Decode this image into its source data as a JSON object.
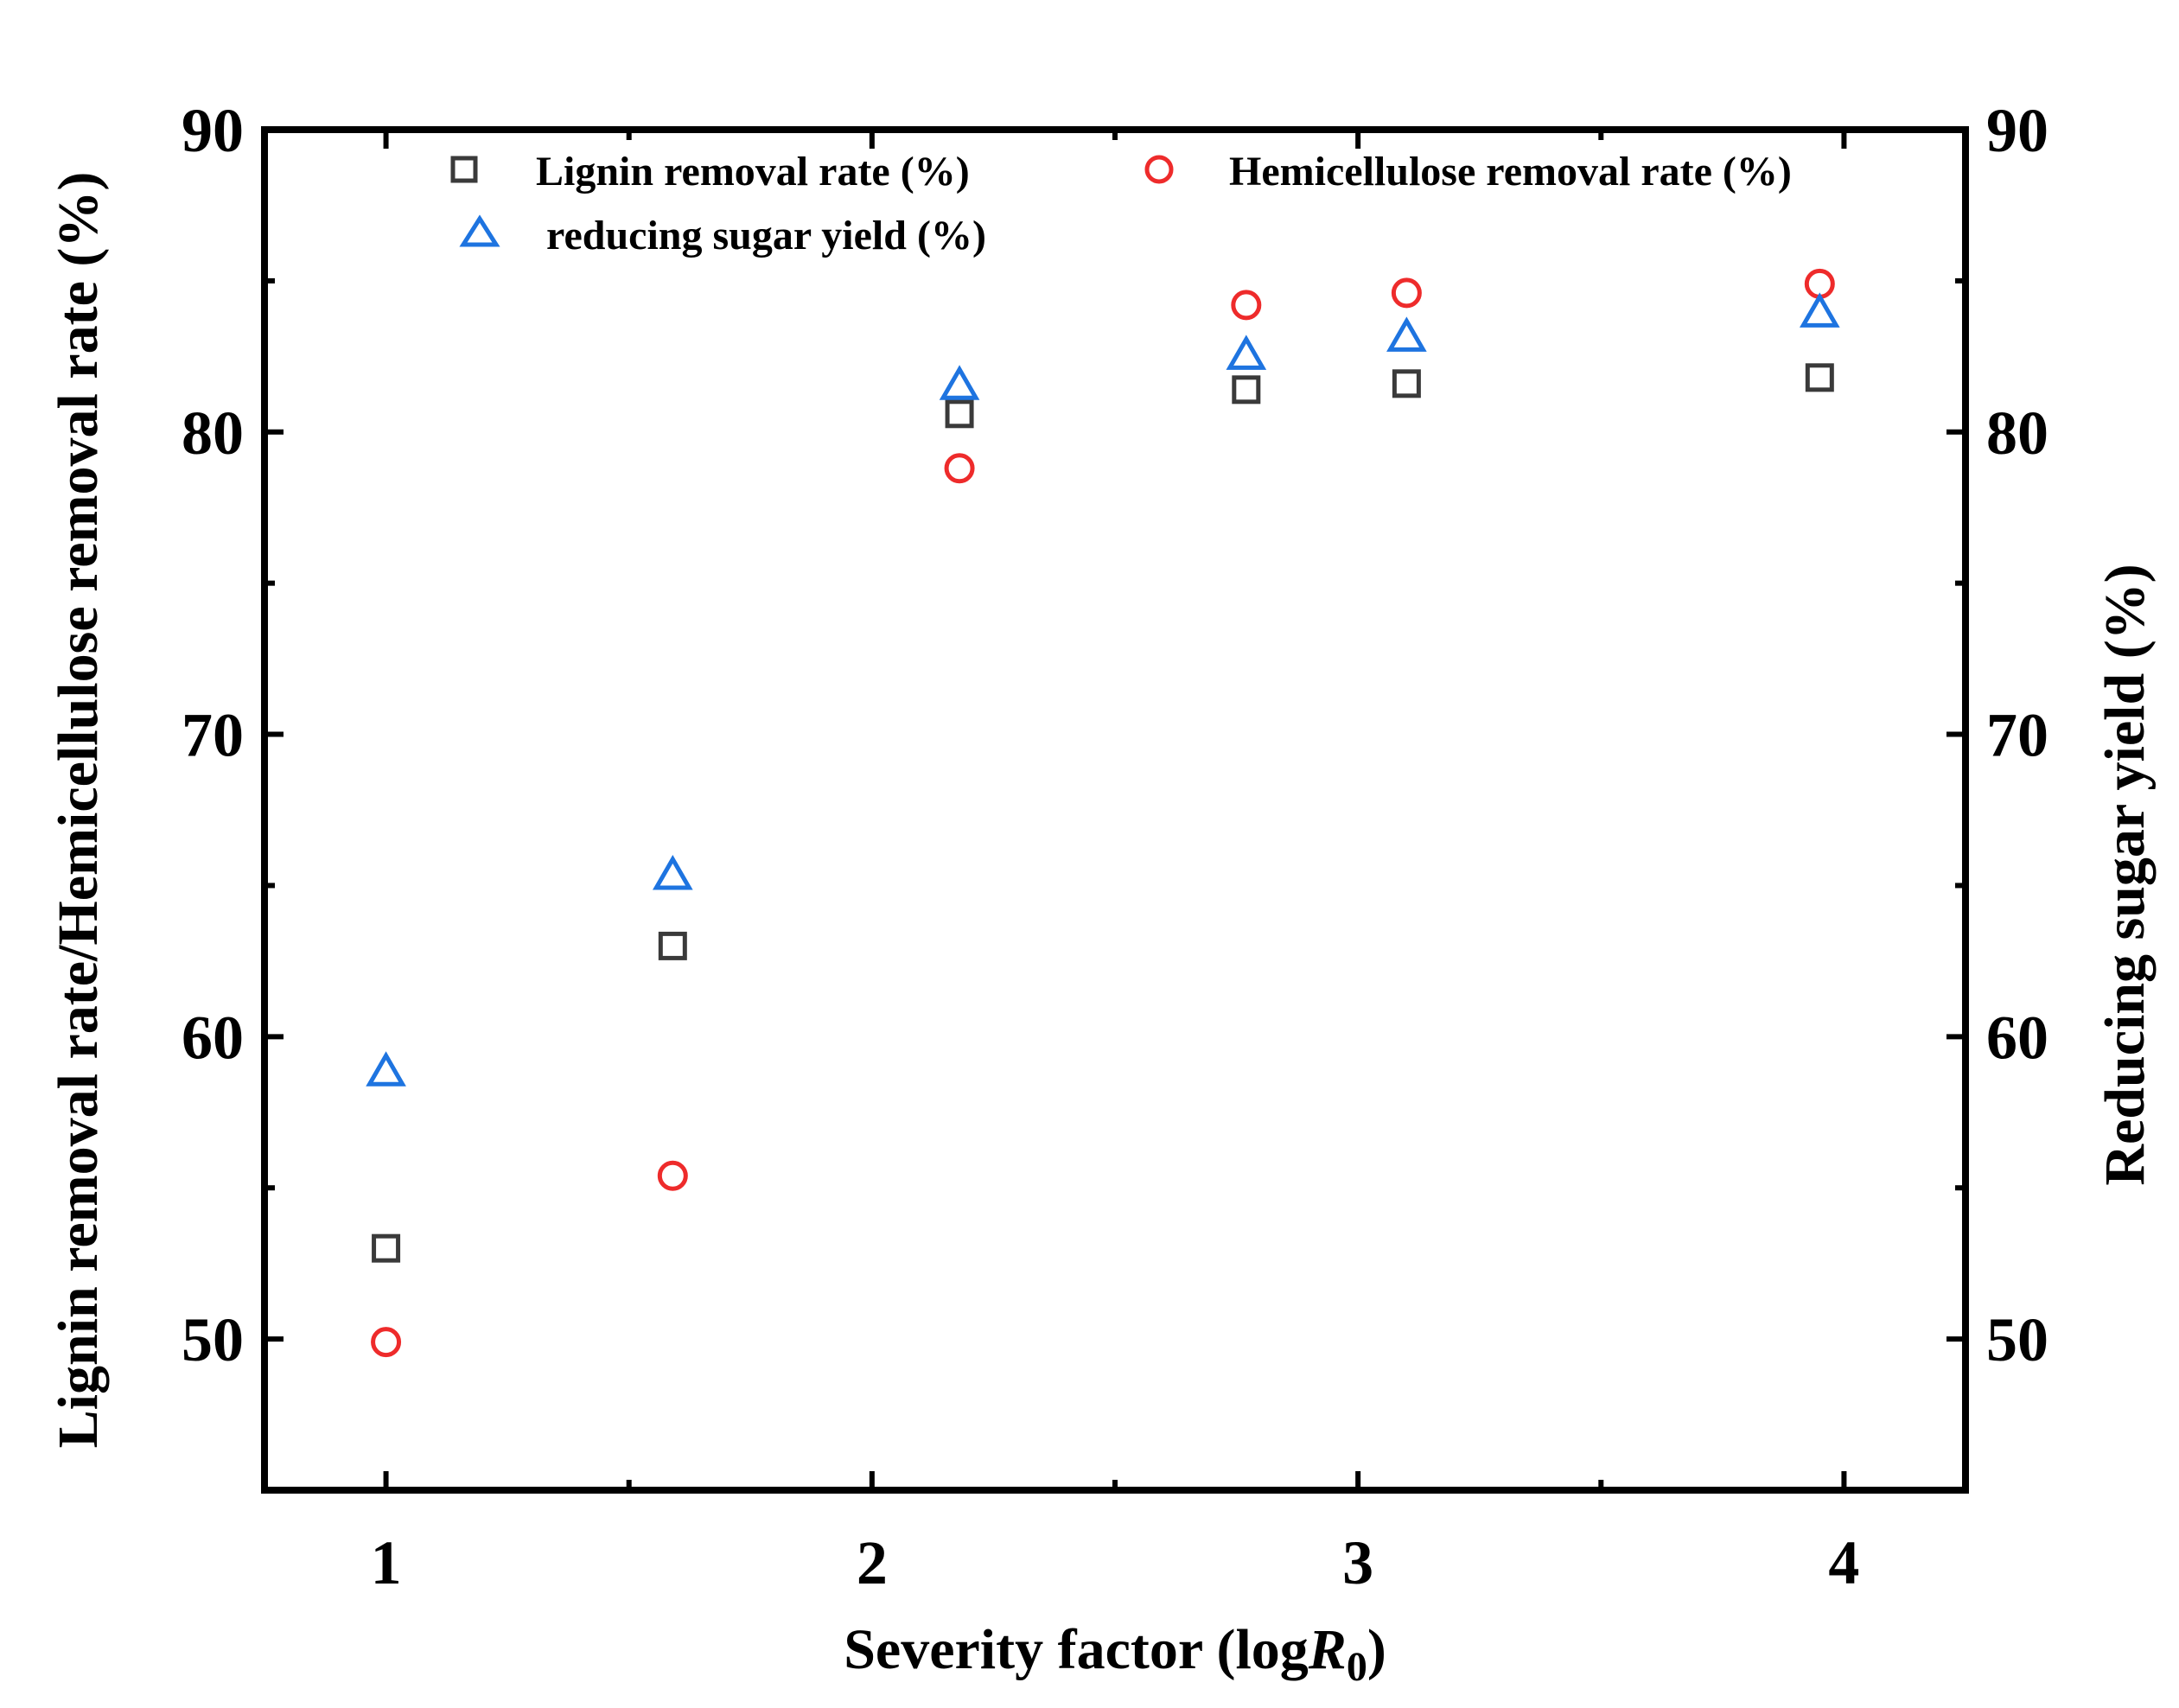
{
  "chart_data": {
    "type": "scatter",
    "title": "",
    "xlabel": "Severity factor (log",
    "xlabel_var": "R",
    "xlabel_sub": "0",
    "xlabel_close": ")",
    "ylabel_left": "Lignin removal rate/Hemicellulose removal rate (%)",
    "ylabel_right": "Reducing sugar yield (%)",
    "xlim": [
      0.75,
      4.25
    ],
    "ylim": [
      45,
      90
    ],
    "x_ticks": [
      1,
      2,
      3,
      4
    ],
    "x_tick_labels": [
      "1",
      "2",
      "3",
      "4"
    ],
    "y_ticks": [
      50,
      60,
      70,
      80,
      90
    ],
    "y_tick_labels": [
      "50",
      "60",
      "70",
      "80",
      "90"
    ],
    "legend_position": "top",
    "series": [
      {
        "name": "Lignin removal rate (%)",
        "marker": "square",
        "color": "#3a3a3a",
        "axis": "left",
        "x": [
          1.0,
          1.59,
          2.18,
          2.77,
          3.1,
          3.95
        ],
        "y": [
          53.0,
          63.0,
          80.6,
          81.4,
          81.6,
          81.8
        ]
      },
      {
        "name": "Hemicellulose removal rate (%)",
        "marker": "circle",
        "color": "#ee2b2b",
        "axis": "left",
        "x": [
          1.0,
          1.59,
          2.18,
          2.77,
          3.1,
          3.95
        ],
        "y": [
          49.9,
          55.4,
          78.8,
          84.2,
          84.6,
          84.9
        ]
      },
      {
        "name": "reducing sugar yield (%)",
        "marker": "triangle",
        "color": "#1e74e0",
        "axis": "right",
        "x": [
          1.0,
          1.59,
          2.18,
          2.77,
          3.1,
          3.95
        ],
        "y": [
          58.8,
          65.3,
          81.5,
          82.5,
          83.1,
          83.9
        ]
      }
    ]
  }
}
